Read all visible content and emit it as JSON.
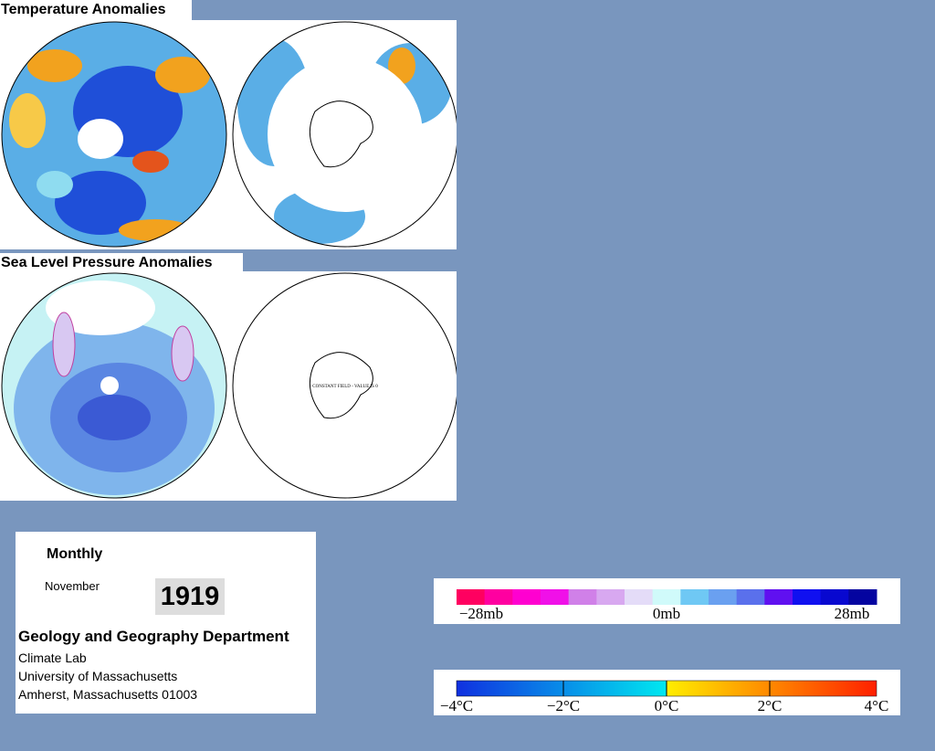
{
  "panels": [
    {
      "title": "Temperature Anomalies"
    },
    {
      "title": "Sea Level Pressure Anomalies",
      "map_note": "CONSTANT FIELD - VALUE IS 0"
    }
  ],
  "info": {
    "frequency": "Monthly",
    "month": "November",
    "year": "1919",
    "department": "Geology and Geography Department",
    "lines": [
      "Climate Lab",
      "University of Massachusetts",
      "Amherst, Massachusetts 01003"
    ]
  },
  "legends": {
    "pressure": [
      "−28mb",
      "0mb",
      "28mb"
    ],
    "temperature": [
      "−4°C",
      "−2°C",
      "0°C",
      "2°C",
      "4°C"
    ]
  }
}
